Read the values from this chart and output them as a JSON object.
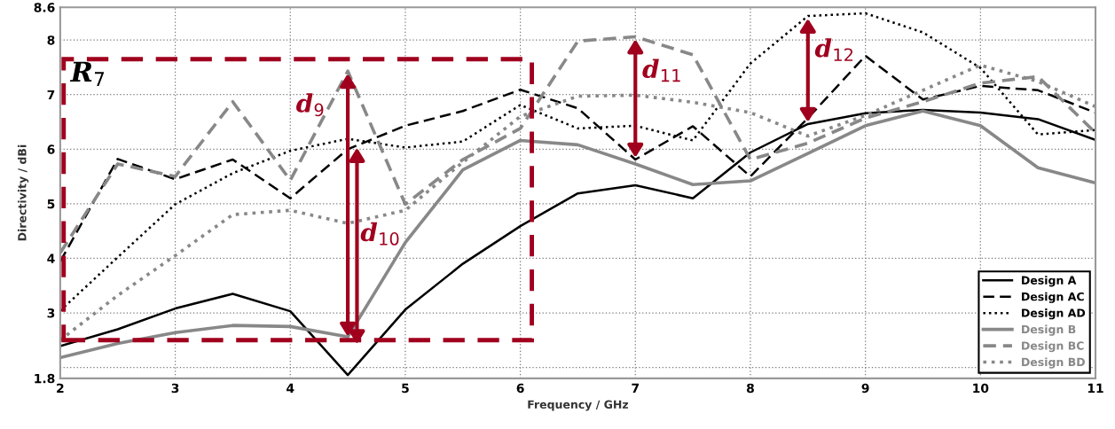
{
  "chart_data": {
    "type": "line",
    "xlabel": "Frequency / GHz",
    "ylabel": "Directivity / dBi",
    "x": [
      2,
      2.5,
      3,
      3.5,
      4,
      4.5,
      5,
      5.5,
      6,
      6.5,
      7,
      7.5,
      8,
      8.5,
      9,
      9.5,
      10,
      10.5,
      11
    ],
    "series": [
      {
        "name": "Design A",
        "color": "#000000",
        "line_style": "solid",
        "values": [
          2.39,
          2.7,
          3.08,
          3.35,
          3.03,
          1.86,
          3.06,
          3.9,
          4.59,
          5.19,
          5.34,
          5.1,
          5.94,
          6.46,
          6.66,
          6.72,
          6.67,
          6.55,
          6.17
        ]
      },
      {
        "name": "Design AC",
        "color": "#000000",
        "line_style": "dashed",
        "values": [
          3.94,
          5.82,
          5.45,
          5.81,
          5.1,
          6.0,
          6.43,
          6.7,
          7.09,
          6.75,
          5.81,
          6.42,
          5.5,
          6.57,
          7.71,
          6.91,
          7.16,
          7.08,
          6.67
        ]
      },
      {
        "name": "Design AD",
        "color": "#000000",
        "line_style": "dotted",
        "values": [
          3.04,
          4.02,
          4.99,
          5.56,
          5.97,
          6.19,
          6.03,
          6.14,
          6.81,
          6.38,
          6.43,
          6.16,
          7.57,
          8.44,
          8.49,
          8.14,
          7.49,
          6.27,
          6.35
        ]
      },
      {
        "name": "Design B",
        "color": "#888888",
        "line_style": "solid",
        "values": [
          2.18,
          2.44,
          2.64,
          2.77,
          2.75,
          2.56,
          4.29,
          5.62,
          6.16,
          6.08,
          5.73,
          5.35,
          5.42,
          5.92,
          6.43,
          6.7,
          6.43,
          5.66,
          5.38
        ]
      },
      {
        "name": "Design BC",
        "color": "#888888",
        "line_style": "dashed",
        "values": [
          4.1,
          5.73,
          5.5,
          6.87,
          5.43,
          7.43,
          4.99,
          5.81,
          6.38,
          7.98,
          8.06,
          7.73,
          5.81,
          6.11,
          6.57,
          6.87,
          7.21,
          7.33,
          6.3
        ]
      },
      {
        "name": "Design BD",
        "color": "#888888",
        "line_style": "dotted",
        "values": [
          2.5,
          3.32,
          4.05,
          4.8,
          4.88,
          4.64,
          4.88,
          5.76,
          6.6,
          6.97,
          6.99,
          6.86,
          6.67,
          6.24,
          6.62,
          7.08,
          7.54,
          7.24,
          6.78
        ]
      }
    ],
    "xlim": [
      2,
      11
    ],
    "xticks": [
      2,
      3,
      4,
      5,
      6,
      7,
      8,
      9,
      10,
      11
    ],
    "ylim": [
      1.8,
      8.6
    ],
    "yticks": [
      1.8,
      {
        "value": 2,
        "label": null
      },
      3,
      4,
      5,
      6,
      7,
      8,
      8.6
    ],
    "grid": true,
    "legend": "bottom right",
    "marker": "none",
    "annotations": [
      "R$_{7}$",
      {
        "text": "d$_{9}$",
        "x": 4.5,
        "y": 7.43
      },
      "d$_{10}$",
      {
        "text": "d$_{11}$",
        "x": 7,
        "y": 8.06
      },
      {
        "text": "d$_{12}$",
        "x": 8.5,
        "y": 8.44
      }
    ]
  }
}
